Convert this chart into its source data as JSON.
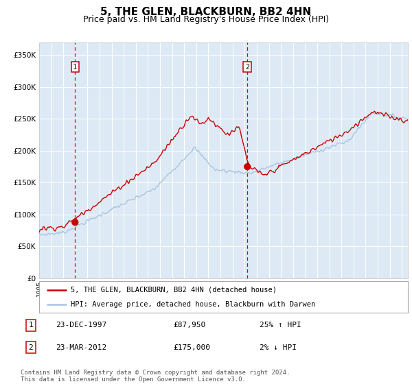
{
  "title": "5, THE GLEN, BLACKBURN, BB2 4HN",
  "subtitle": "Price paid vs. HM Land Registry's House Price Index (HPI)",
  "title_fontsize": 11,
  "subtitle_fontsize": 9,
  "xlim_start": 1995.0,
  "xlim_end": 2025.5,
  "ylim": [
    0,
    370000
  ],
  "yticks": [
    0,
    50000,
    100000,
    150000,
    200000,
    250000,
    300000,
    350000
  ],
  "ytick_labels": [
    "£0",
    "£50K",
    "£100K",
    "£150K",
    "£200K",
    "£250K",
    "£300K",
    "£350K"
  ],
  "plot_bg_color": "#ddeaf5",
  "grid_color": "#ffffff",
  "hpi_line_color": "#a8c4e0",
  "price_line_color": "#cc0000",
  "sale1_date_num": 1997.97,
  "sale1_price": 87950,
  "sale2_date_num": 2012.22,
  "sale2_price": 175000,
  "vline_color": "#cc0000",
  "point_color": "#cc0000",
  "legend_label1": "5, THE GLEN, BLACKBURN, BB2 4HN (detached house)",
  "legend_label2": "HPI: Average price, detached house, Blackburn with Darwen",
  "footer_text": "Contains HM Land Registry data © Crown copyright and database right 2024.\nThis data is licensed under the Open Government Licence v3.0.",
  "table_rows": [
    {
      "num": "1",
      "date": "23-DEC-1997",
      "price": "£87,950",
      "hpi": "25% ↑ HPI"
    },
    {
      "num": "2",
      "date": "23-MAR-2012",
      "price": "£175,000",
      "hpi": "2% ↓ HPI"
    }
  ]
}
